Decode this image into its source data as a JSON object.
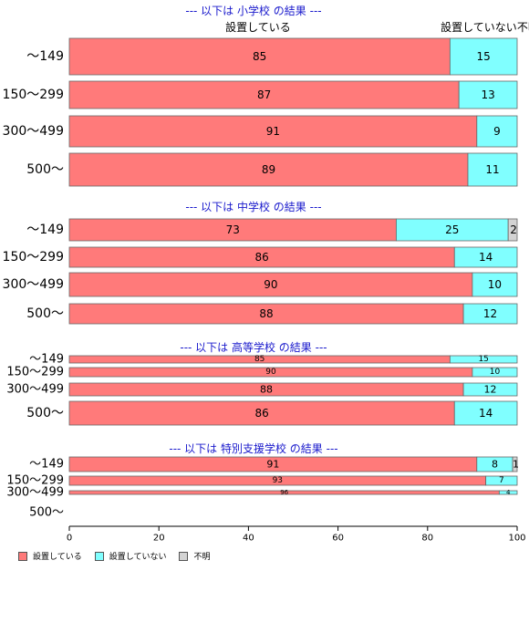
{
  "chart_data": {
    "type": "bar",
    "orientation": "horizontal",
    "stacked": true,
    "xlim": [
      0,
      100
    ],
    "xticks": [
      0,
      20,
      40,
      60,
      80,
      100
    ],
    "column_headers": [
      "設置している",
      "設置していない",
      "不明"
    ],
    "legend": {
      "placement": "bottom-left",
      "items": [
        "設置している",
        "設置していない",
        "不明"
      ]
    },
    "series_colors": [
      "#ff7a7a",
      "#80ffff",
      "#d3d3d3"
    ],
    "groups": [
      {
        "title": "--- 以下は 小学校 の結果 ---",
        "categories": [
          "～149",
          "150～299",
          "300～499",
          "500～"
        ],
        "series": [
          {
            "name": "設置している",
            "values": [
              85,
              87,
              91,
              89
            ]
          },
          {
            "name": "設置していない",
            "values": [
              15,
              13,
              9,
              11
            ]
          },
          {
            "name": "不明",
            "values": [
              0,
              0,
              0,
              0
            ]
          }
        ]
      },
      {
        "title": "--- 以下は 中学校 の結果 ---",
        "categories": [
          "～149",
          "150～299",
          "300～499",
          "500～"
        ],
        "series": [
          {
            "name": "設置している",
            "values": [
              73,
              86,
              90,
              88
            ]
          },
          {
            "name": "設置していない",
            "values": [
              25,
              14,
              10,
              12
            ]
          },
          {
            "name": "不明",
            "values": [
              2,
              0,
              0,
              0
            ]
          }
        ]
      },
      {
        "title": "--- 以下は 高等学校 の結果 ---",
        "categories": [
          "～149",
          "150～299",
          "300～499",
          "500～"
        ],
        "series": [
          {
            "name": "設置している",
            "values": [
              85,
              90,
              88,
              86
            ]
          },
          {
            "name": "設置していない",
            "values": [
              15,
              10,
              12,
              14
            ]
          },
          {
            "name": "不明",
            "values": [
              0,
              0,
              0,
              0
            ]
          }
        ]
      },
      {
        "title": "--- 以下は 特別支援学校 の結果 ---",
        "categories": [
          "～149",
          "150～299",
          "300～499",
          "500～"
        ],
        "series": [
          {
            "name": "設置している",
            "values": [
              91,
              93,
              96,
              null
            ]
          },
          {
            "name": "設置していない",
            "values": [
              8,
              7,
              4,
              null
            ]
          },
          {
            "name": "不明",
            "values": [
              1,
              0,
              0,
              null
            ]
          }
        ]
      }
    ]
  }
}
